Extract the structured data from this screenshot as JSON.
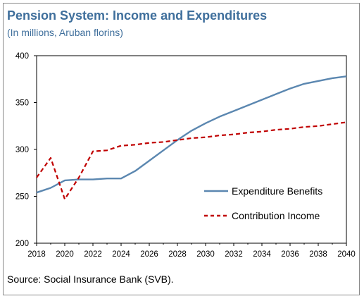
{
  "header": {
    "title": "Pension System: Income and Expenditures",
    "subtitle": "(In millions, Aruban florins)"
  },
  "footer": {
    "source": "Source: Social Insurance Bank (SVB)."
  },
  "colors": {
    "expenditure": "#5b87b0",
    "income": "#c00000",
    "title": "#3f6f9c"
  },
  "chart_data": {
    "type": "line",
    "title": "Pension System: Income and Expenditures",
    "subtitle": "(In millions, Aruban florins)",
    "xlabel": "",
    "ylabel": "",
    "xlim": [
      2018,
      2040
    ],
    "ylim": [
      200,
      400
    ],
    "x_ticks": [
      "2018",
      "2020",
      "2022",
      "2024",
      "2026",
      "2028",
      "2030",
      "2032",
      "2034",
      "2036",
      "2038",
      "2040"
    ],
    "y_ticks": [
      "200",
      "250",
      "300",
      "350",
      "400"
    ],
    "grid": false,
    "legend_position": "right",
    "x": [
      2018,
      2019,
      2020,
      2021,
      2022,
      2023,
      2024,
      2025,
      2026,
      2027,
      2028,
      2029,
      2030,
      2031,
      2032,
      2033,
      2034,
      2035,
      2036,
      2037,
      2038,
      2039,
      2040
    ],
    "series": [
      {
        "name": "Expenditure Benefits",
        "style": "solid",
        "color": "#5b87b0",
        "values": [
          254,
          259,
          267,
          268,
          268,
          269,
          269,
          277,
          288,
          299,
          310,
          320,
          328,
          335,
          341,
          347,
          353,
          359,
          365,
          370,
          373,
          376,
          378
        ]
      },
      {
        "name": "Contribution Income",
        "style": "dashed",
        "color": "#c00000",
        "values": [
          270,
          291,
          247,
          270,
          298,
          299,
          304,
          305,
          307,
          308,
          310,
          312,
          313,
          315,
          316,
          318,
          319,
          321,
          322,
          324,
          325,
          327,
          329
        ]
      }
    ]
  }
}
